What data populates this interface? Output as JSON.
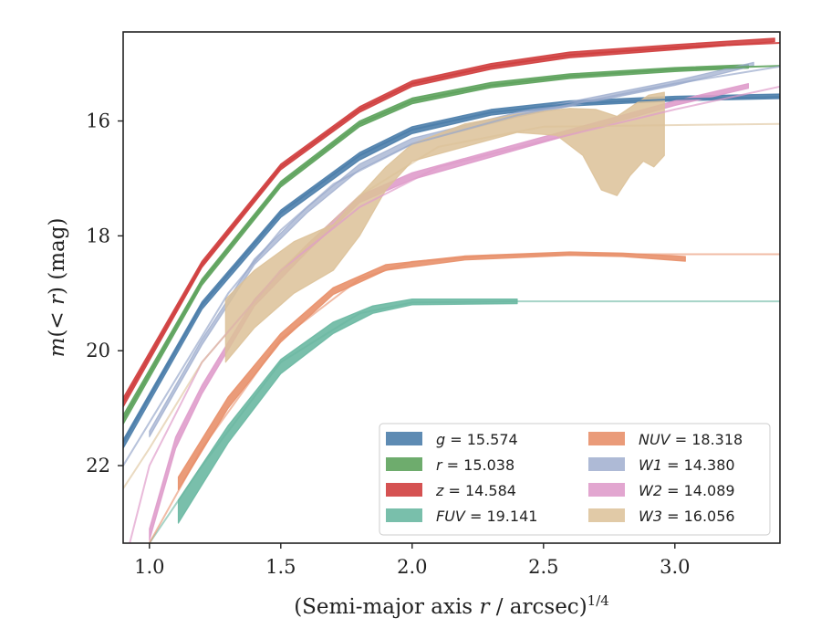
{
  "chart_data": {
    "type": "line",
    "title": "",
    "xlabel": "(Semi-major axis r / arcsec)",
    "xlabel_parts": {
      "pre": "(Semi-major axis ",
      "var": "r",
      "post": " / arcsec)",
      "sup": "1/4"
    },
    "ylabel_parts": {
      "a": "m",
      "b": "(< ",
      "c": "r",
      "d": ") (mag)"
    },
    "xlim": [
      0.9,
      3.4
    ],
    "ylim": [
      23.35,
      14.45
    ],
    "y_inverted": true,
    "grid": false,
    "legend_position": "lower-right",
    "xticks": [
      1.0,
      1.5,
      2.0,
      2.5,
      3.0
    ],
    "xtick_labels": [
      "1.0",
      "1.5",
      "2.0",
      "2.5",
      "3.0"
    ],
    "yticks": [
      16,
      18,
      20,
      22
    ],
    "ytick_labels": [
      "16",
      "18",
      "20",
      "22"
    ],
    "series": [
      {
        "name": "g",
        "legend_label": "g = 15.574",
        "label_var": "g",
        "label_value": "= 15.574",
        "color": "#4c7eab",
        "ext_alpha": 0.9,
        "band_alpha": 0.9,
        "extrap": [
          [
            0.9,
            21.6
          ],
          [
            1.2,
            19.2
          ],
          [
            1.5,
            17.6
          ],
          [
            1.8,
            16.6
          ],
          [
            2.0,
            16.15
          ],
          [
            2.3,
            15.85
          ],
          [
            2.6,
            15.7
          ],
          [
            3.0,
            15.62
          ],
          [
            3.4,
            15.58
          ]
        ],
        "band_upper": [
          [
            0.9,
            21.55
          ],
          [
            1.2,
            19.15
          ],
          [
            1.5,
            17.55
          ],
          [
            1.8,
            16.55
          ],
          [
            2.0,
            16.1
          ],
          [
            2.3,
            15.8
          ],
          [
            2.6,
            15.65
          ],
          [
            3.0,
            15.57
          ],
          [
            3.4,
            15.53
          ]
        ],
        "band_lower": [
          [
            0.9,
            21.7
          ],
          [
            1.2,
            19.28
          ],
          [
            1.5,
            17.68
          ],
          [
            1.8,
            16.68
          ],
          [
            2.0,
            16.22
          ],
          [
            2.3,
            15.9
          ],
          [
            2.6,
            15.74
          ],
          [
            3.0,
            15.65
          ],
          [
            3.4,
            15.61
          ]
        ]
      },
      {
        "name": "r",
        "legend_label": "r = 15.038",
        "label_var": "r",
        "label_value": "= 15.038",
        "color": "#5ea35d",
        "ext_alpha": 0.9,
        "band_alpha": 0.9,
        "extrap": [
          [
            0.9,
            21.2
          ],
          [
            1.2,
            18.8
          ],
          [
            1.5,
            17.1
          ],
          [
            1.8,
            16.05
          ],
          [
            2.0,
            15.65
          ],
          [
            2.3,
            15.38
          ],
          [
            2.6,
            15.22
          ],
          [
            3.0,
            15.1
          ],
          [
            3.4,
            15.04
          ]
        ],
        "band_upper": [
          [
            0.9,
            21.12
          ],
          [
            1.2,
            18.75
          ],
          [
            1.5,
            17.05
          ],
          [
            1.8,
            16.0
          ],
          [
            2.0,
            15.6
          ],
          [
            2.3,
            15.33
          ],
          [
            2.6,
            15.18
          ],
          [
            3.0,
            15.07
          ],
          [
            3.28,
            15.02
          ]
        ],
        "band_lower": [
          [
            0.9,
            21.28
          ],
          [
            1.2,
            18.86
          ],
          [
            1.5,
            17.15
          ],
          [
            1.8,
            16.1
          ],
          [
            2.0,
            15.7
          ],
          [
            2.3,
            15.42
          ],
          [
            2.6,
            15.26
          ],
          [
            3.0,
            15.14
          ],
          [
            3.28,
            15.08
          ]
        ]
      },
      {
        "name": "z",
        "legend_label": "z = 14.584",
        "label_var": "z",
        "label_value": "= 14.584",
        "color": "#d03f3f",
        "ext_alpha": 0.9,
        "band_alpha": 0.9,
        "extrap": [
          [
            0.9,
            20.9
          ],
          [
            1.2,
            18.5
          ],
          [
            1.5,
            16.8
          ],
          [
            1.8,
            15.8
          ],
          [
            2.0,
            15.35
          ],
          [
            2.3,
            15.05
          ],
          [
            2.6,
            14.85
          ],
          [
            3.0,
            14.72
          ],
          [
            3.4,
            14.64
          ]
        ],
        "band_upper": [
          [
            0.9,
            20.82
          ],
          [
            1.2,
            18.44
          ],
          [
            1.5,
            16.75
          ],
          [
            1.8,
            15.75
          ],
          [
            2.0,
            15.3
          ],
          [
            2.3,
            15.0
          ],
          [
            2.6,
            14.8
          ],
          [
            3.0,
            14.67
          ],
          [
            3.38,
            14.56
          ]
        ],
        "band_lower": [
          [
            0.9,
            20.98
          ],
          [
            1.2,
            18.55
          ],
          [
            1.5,
            16.85
          ],
          [
            1.8,
            15.85
          ],
          [
            2.0,
            15.4
          ],
          [
            2.3,
            15.1
          ],
          [
            2.6,
            14.9
          ],
          [
            3.0,
            14.76
          ],
          [
            3.38,
            14.62
          ]
        ]
      },
      {
        "name": "FUV",
        "legend_label": "FUV = 19.141",
        "label_var": "FUV",
        "label_value": "= 19.141",
        "color": "#6ab8a2",
        "ext_alpha": 0.6,
        "band_alpha": 0.9,
        "extrap": [
          [
            1.0,
            23.35
          ],
          [
            1.2,
            22.0
          ],
          [
            1.5,
            20.2
          ],
          [
            1.8,
            19.35
          ],
          [
            2.0,
            19.16
          ],
          [
            2.4,
            19.14
          ],
          [
            3.4,
            19.14
          ]
        ],
        "band_upper": [
          [
            1.11,
            22.6
          ],
          [
            1.3,
            21.3
          ],
          [
            1.5,
            20.15
          ],
          [
            1.7,
            19.5
          ],
          [
            1.85,
            19.22
          ],
          [
            2.0,
            19.1
          ],
          [
            2.4,
            19.1
          ]
        ],
        "band_lower": [
          [
            1.11,
            23.0
          ],
          [
            1.3,
            21.6
          ],
          [
            1.5,
            20.4
          ],
          [
            1.7,
            19.7
          ],
          [
            1.85,
            19.35
          ],
          [
            2.0,
            19.2
          ],
          [
            2.4,
            19.18
          ]
        ]
      },
      {
        "name": "NUV",
        "legend_label": "NUV = 18.318",
        "label_var": "NUV",
        "label_value": "= 18.318",
        "color": "#e8906a",
        "ext_alpha": 0.6,
        "band_alpha": 0.9,
        "extrap": [
          [
            1.0,
            23.35
          ],
          [
            1.2,
            21.7
          ],
          [
            1.5,
            19.8
          ],
          [
            1.8,
            18.75
          ],
          [
            2.0,
            18.45
          ],
          [
            2.3,
            18.34
          ],
          [
            2.6,
            18.32
          ],
          [
            3.4,
            18.32
          ]
        ],
        "band_upper": [
          [
            1.11,
            22.2
          ],
          [
            1.3,
            20.8
          ],
          [
            1.5,
            19.7
          ],
          [
            1.7,
            18.9
          ],
          [
            1.9,
            18.5
          ],
          [
            2.2,
            18.35
          ],
          [
            2.6,
            18.28
          ],
          [
            2.8,
            18.3
          ],
          [
            3.04,
            18.36
          ]
        ],
        "band_lower": [
          [
            1.11,
            22.42
          ],
          [
            1.3,
            21.0
          ],
          [
            1.5,
            19.85
          ],
          [
            1.7,
            19.02
          ],
          [
            1.9,
            18.6
          ],
          [
            2.2,
            18.42
          ],
          [
            2.6,
            18.34
          ],
          [
            2.8,
            18.36
          ],
          [
            3.04,
            18.44
          ]
        ]
      },
      {
        "name": "W1",
        "legend_label": "W1 = 14.380",
        "label_var": "W1",
        "label_value": "= 14.380",
        "color": "#9aa9cc",
        "ext_alpha": 0.7,
        "band_alpha": 0.7,
        "extrap": [
          [
            0.9,
            22.0
          ],
          [
            1.1,
            20.5
          ],
          [
            1.3,
            19.0
          ],
          [
            1.5,
            17.9
          ],
          [
            1.7,
            17.1
          ],
          [
            2.0,
            16.4
          ],
          [
            2.4,
            15.9
          ],
          [
            3.0,
            15.35
          ],
          [
            3.4,
            15.05
          ]
        ],
        "band_upper": [
          [
            1.0,
            21.4
          ],
          [
            1.2,
            19.8
          ],
          [
            1.4,
            18.4
          ],
          [
            1.6,
            17.5
          ],
          [
            1.8,
            16.75
          ],
          [
            2.0,
            16.3
          ],
          [
            2.4,
            15.85
          ],
          [
            3.0,
            15.3
          ],
          [
            3.3,
            14.98
          ]
        ],
        "band_lower": [
          [
            1.0,
            21.5
          ],
          [
            1.2,
            19.9
          ],
          [
            1.4,
            18.5
          ],
          [
            1.6,
            17.6
          ],
          [
            1.8,
            16.85
          ],
          [
            2.0,
            16.4
          ],
          [
            2.4,
            15.93
          ],
          [
            3.0,
            15.38
          ],
          [
            3.3,
            15.04
          ]
        ]
      },
      {
        "name": "W2",
        "legend_label": "W2 = 14.089",
        "label_var": "W2",
        "label_value": "= 14.089",
        "color": "#df9ccb",
        "ext_alpha": 0.7,
        "band_alpha": 0.9,
        "extrap": [
          [
            0.9,
            23.8
          ],
          [
            1.0,
            22.0
          ],
          [
            1.2,
            20.2
          ],
          [
            1.5,
            18.6
          ],
          [
            1.8,
            17.5
          ],
          [
            2.1,
            16.8
          ],
          [
            2.5,
            16.35
          ],
          [
            3.0,
            15.8
          ],
          [
            3.4,
            15.4
          ]
        ],
        "band_upper": [
          [
            1.0,
            23.1
          ],
          [
            1.1,
            21.5
          ],
          [
            1.2,
            20.6
          ],
          [
            1.4,
            19.1
          ],
          [
            1.6,
            18.15
          ],
          [
            1.8,
            17.3
          ],
          [
            2.0,
            16.9
          ],
          [
            2.4,
            16.4
          ],
          [
            3.0,
            15.65
          ],
          [
            3.28,
            15.35
          ]
        ],
        "band_lower": [
          [
            1.0,
            23.3
          ],
          [
            1.1,
            21.7
          ],
          [
            1.2,
            20.75
          ],
          [
            1.4,
            19.22
          ],
          [
            1.6,
            18.28
          ],
          [
            1.8,
            17.42
          ],
          [
            2.0,
            17.02
          ],
          [
            2.4,
            16.5
          ],
          [
            3.0,
            15.73
          ],
          [
            3.28,
            15.43
          ]
        ]
      },
      {
        "name": "W3",
        "legend_label": "W3 = 16.056",
        "label_var": "W3",
        "label_value": "= 16.056",
        "color": "#dcc198",
        "ext_alpha": 0.6,
        "band_alpha": 0.85,
        "extrap": [
          [
            0.9,
            22.4
          ],
          [
            1.0,
            21.7
          ],
          [
            1.2,
            20.2
          ],
          [
            1.5,
            18.6
          ],
          [
            1.8,
            17.3
          ],
          [
            2.1,
            16.45
          ],
          [
            2.5,
            16.1
          ],
          [
            3.4,
            16.05
          ]
        ],
        "band_upper": [
          [
            1.29,
            19.1
          ],
          [
            1.4,
            18.6
          ],
          [
            1.55,
            18.1
          ],
          [
            1.7,
            17.8
          ],
          [
            1.8,
            17.3
          ],
          [
            1.9,
            16.8
          ],
          [
            2.0,
            16.4
          ],
          [
            2.2,
            16.05
          ],
          [
            2.4,
            15.88
          ],
          [
            2.6,
            15.78
          ],
          [
            2.7,
            15.8
          ],
          [
            2.78,
            15.92
          ],
          [
            2.85,
            15.7
          ],
          [
            2.9,
            15.55
          ],
          [
            2.96,
            15.5
          ]
        ],
        "band_lower": [
          [
            1.29,
            20.2
          ],
          [
            1.4,
            19.6
          ],
          [
            1.55,
            19.0
          ],
          [
            1.7,
            18.6
          ],
          [
            1.8,
            18.0
          ],
          [
            1.9,
            17.2
          ],
          [
            2.0,
            16.7
          ],
          [
            2.2,
            16.45
          ],
          [
            2.4,
            16.2
          ],
          [
            2.55,
            16.25
          ],
          [
            2.65,
            16.6
          ],
          [
            2.72,
            17.2
          ],
          [
            2.78,
            17.3
          ],
          [
            2.83,
            16.95
          ],
          [
            2.88,
            16.7
          ],
          [
            2.92,
            16.8
          ],
          [
            2.96,
            16.6
          ]
        ]
      }
    ]
  }
}
